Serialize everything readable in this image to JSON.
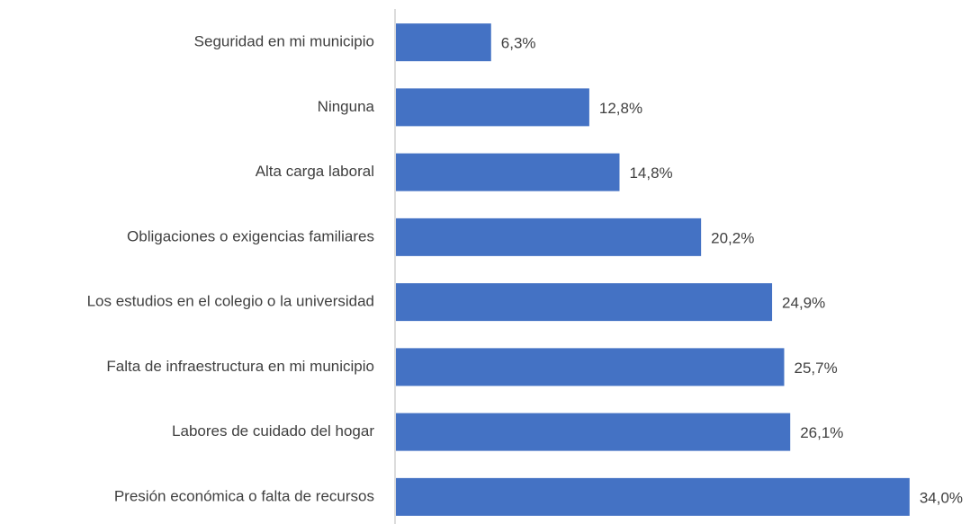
{
  "chart_data": {
    "type": "barh",
    "categories": [
      "Seguridad en mi municipio",
      "Ninguna",
      "Alta carga laboral",
      "Obligaciones o exigencias familiares",
      "Los estudios en el colegio o la universidad",
      "Falta de infraestructura en mi municipio",
      "Labores de cuidado del hogar",
      "Presión económica o falta de recursos"
    ],
    "values": [
      6.3,
      12.8,
      14.8,
      20.2,
      24.9,
      25.7,
      26.1,
      34.0
    ],
    "value_labels": [
      "6,3%",
      "12,8%",
      "14,8%",
      "20,2%",
      "24,9%",
      "25,7%",
      "26,1%",
      "34,0%"
    ],
    "color": "#4472c4",
    "xlim": [
      0,
      38
    ]
  }
}
